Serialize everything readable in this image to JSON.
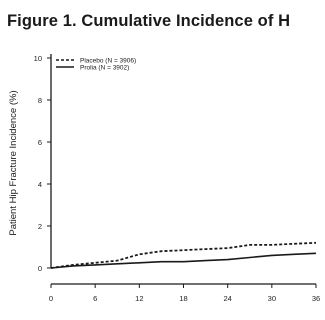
{
  "figure_title": "Figure 1. Cumulative Incidence of H",
  "chart_data": {
    "type": "line",
    "title": "Figure 1. Cumulative Incidence of H",
    "ylabel": "Patient Hip Fracture Incidence (%)",
    "xlabel": "",
    "ylim": [
      0,
      10
    ],
    "yticks": [
      0,
      2,
      4,
      6,
      8,
      10
    ],
    "xlim": [
      0,
      36
    ],
    "xticks": [
      0,
      6,
      12,
      18,
      24,
      30,
      36
    ],
    "legend_position": "top-left",
    "grid": false,
    "x": [
      0,
      3,
      6,
      9,
      12,
      15,
      18,
      21,
      24,
      27,
      30,
      33,
      36
    ],
    "series": [
      {
        "name": "Placebo (N = 3906)",
        "style": "dashed",
        "color": "#1a1a1a",
        "values": [
          0.0,
          0.15,
          0.25,
          0.35,
          0.65,
          0.8,
          0.85,
          0.9,
          0.95,
          1.1,
          1.1,
          1.15,
          1.2
        ]
      },
      {
        "name": "Prolia (N = 3902)",
        "style": "solid",
        "color": "#1a1a1a",
        "values": [
          0.0,
          0.1,
          0.15,
          0.2,
          0.25,
          0.3,
          0.3,
          0.35,
          0.4,
          0.5,
          0.6,
          0.65,
          0.7
        ]
      }
    ]
  }
}
